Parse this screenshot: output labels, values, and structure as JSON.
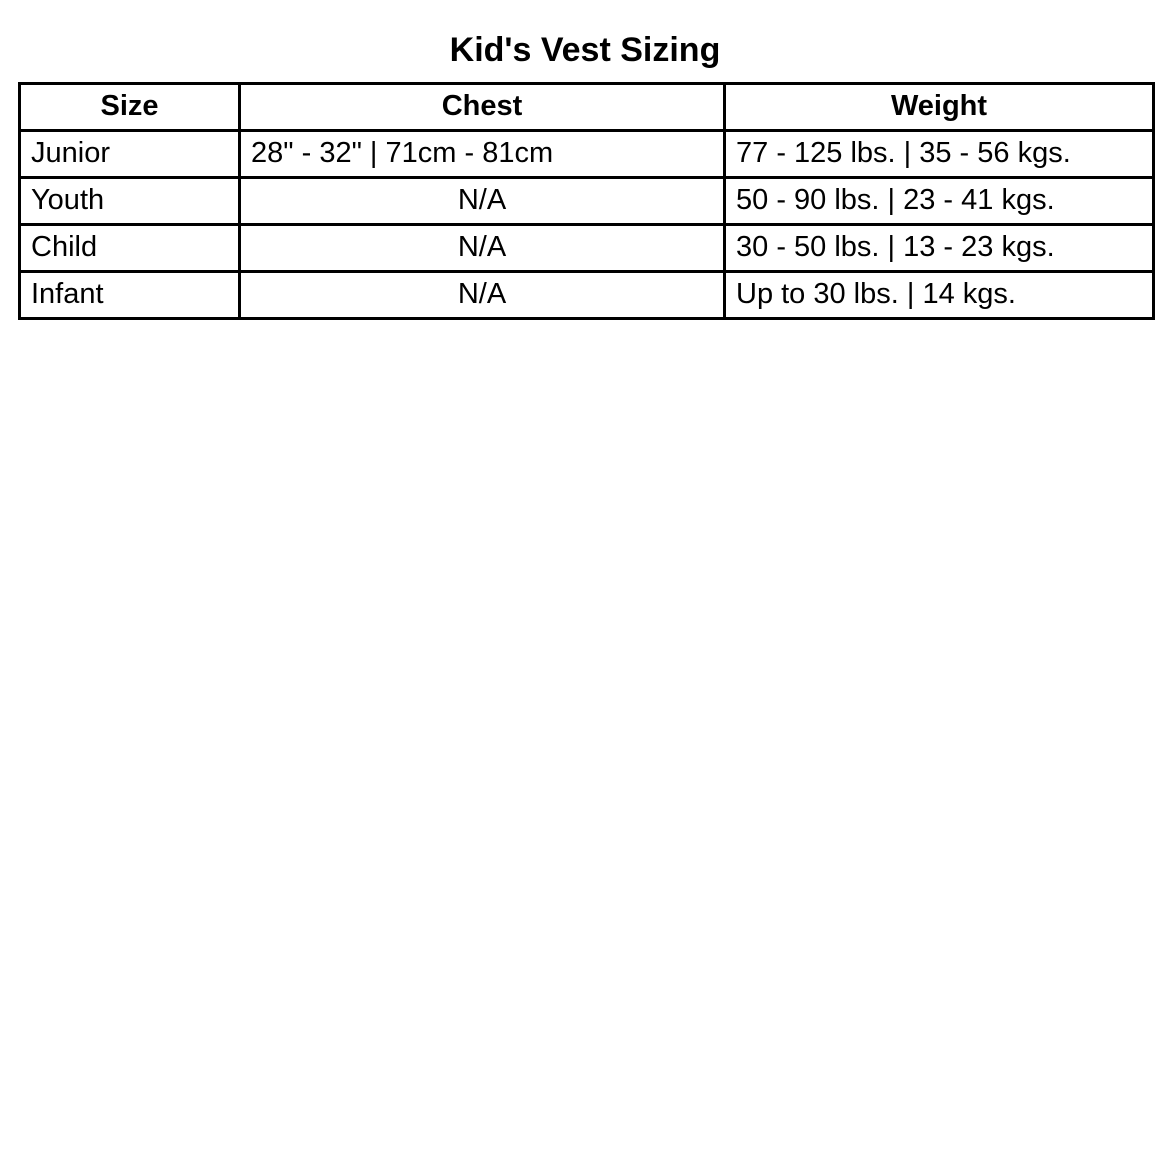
{
  "title": "Kid's Vest Sizing",
  "table": {
    "headers": [
      "Size",
      "Chest",
      "Weight"
    ],
    "rows": [
      {
        "size": "Junior",
        "chest": "28\" - 32\" | 71cm - 81cm",
        "weight": "77 - 125 lbs. | 35 - 56 kgs."
      },
      {
        "size": "Youth",
        "chest": "N/A",
        "weight": "50 - 90 lbs. | 23 - 41 kgs."
      },
      {
        "size": "Child",
        "chest": "N/A",
        "weight": "30 - 50 lbs. | 13 - 23 kgs."
      },
      {
        "size": "Infant",
        "chest": "N/A",
        "weight": "Up to 30 lbs. | 14 kgs."
      }
    ]
  },
  "chart_data": {
    "type": "table",
    "title": "Kid's Vest Sizing",
    "columns": [
      "Size",
      "Chest",
      "Weight"
    ],
    "rows": [
      [
        "Junior",
        "28\" - 32\" | 71cm - 81cm",
        "77 - 125 lbs. | 35 - 56 kgs."
      ],
      [
        "Youth",
        "N/A",
        "50 - 90 lbs. | 23 - 41 kgs."
      ],
      [
        "Child",
        "N/A",
        "30 - 50 lbs. | 13 - 23 kgs."
      ],
      [
        "Infant",
        "N/A",
        "Up to 30 lbs. | 14 kgs."
      ]
    ],
    "legend": null,
    "grid": true
  },
  "colors": {
    "background": "#ffffff",
    "border": "#000000",
    "text": "#000000"
  }
}
